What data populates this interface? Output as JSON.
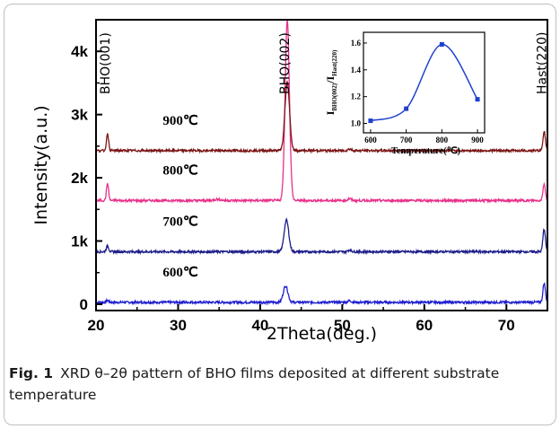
{
  "caption": {
    "label": "Fig. 1",
    "text": "XRD θ–2θ pattern of BHO films deposited at different substrate temperature"
  },
  "chart_data": [
    {
      "type": "line",
      "title": "",
      "xlabel": "2Theta(deg.)",
      "ylabel": "Intensity(a.u.)",
      "xlim": [
        20,
        75
      ],
      "ylim": [
        -100,
        4500
      ],
      "xticks": [
        20,
        30,
        40,
        50,
        60,
        70
      ],
      "yticks": [
        {
          "v": 0,
          "t": "0"
        },
        {
          "v": 1000,
          "t": "1k"
        },
        {
          "v": 2000,
          "t": "2k"
        },
        {
          "v": 3000,
          "t": "3k"
        },
        {
          "v": 4000,
          "t": "4k"
        }
      ],
      "peak_labels": [
        {
          "text": "BHO(001)",
          "x": 21.4
        },
        {
          "text": "BHO(002)",
          "x": 43.3
        },
        {
          "text": "Hast(220)",
          "x": 74.6
        }
      ],
      "series": [
        {
          "name": "600℃",
          "color": "#1f1fcf",
          "baseline": 30,
          "peaks": [
            [
              21.4,
              30,
              0.15
            ],
            [
              43.1,
              260,
              0.28
            ],
            [
              50.9,
              25,
              0.2
            ],
            [
              74.6,
              300,
              0.15
            ]
          ]
        },
        {
          "name": "700℃",
          "color": "#1c1c8a",
          "baseline": 830,
          "peaks": [
            [
              21.4,
              90,
              0.15
            ],
            [
              43.2,
              500,
              0.28
            ],
            [
              50.9,
              30,
              0.2
            ],
            [
              74.6,
              360,
              0.15
            ]
          ]
        },
        {
          "name": "800℃",
          "color": "#e8308a",
          "baseline": 1640,
          "peaks": [
            [
              21.4,
              270,
              0.13
            ],
            [
              34.8,
              20,
              0.4
            ],
            [
              43.3,
              2860,
              0.26
            ],
            [
              50.9,
              30,
              0.2
            ],
            [
              74.6,
              260,
              0.15
            ]
          ]
        },
        {
          "name": "900℃",
          "color": "#7a1414",
          "baseline": 2430,
          "peaks": [
            [
              21.4,
              270,
              0.13
            ],
            [
              43.3,
              1080,
              0.28
            ],
            [
              50.9,
              25,
              0.2
            ],
            [
              74.6,
              300,
              0.15
            ]
          ]
        }
      ]
    },
    {
      "type": "line",
      "title": "",
      "xlabel": "Temperature(℃)",
      "ylabel_main": "I",
      "ylabel_sub1": "BHO(002)",
      "ylabel_mid": "/I",
      "ylabel_sub2": "Hast(220)",
      "xlim": [
        580,
        920
      ],
      "ylim": [
        0.93,
        1.68
      ],
      "xticks": [
        600,
        700,
        800,
        900
      ],
      "yticks": [
        1.0,
        1.2,
        1.4,
        1.6
      ],
      "color": "#1f3fcf",
      "x": [
        600,
        700,
        800,
        900
      ],
      "y": [
        1.02,
        1.11,
        1.59,
        1.18
      ]
    }
  ]
}
